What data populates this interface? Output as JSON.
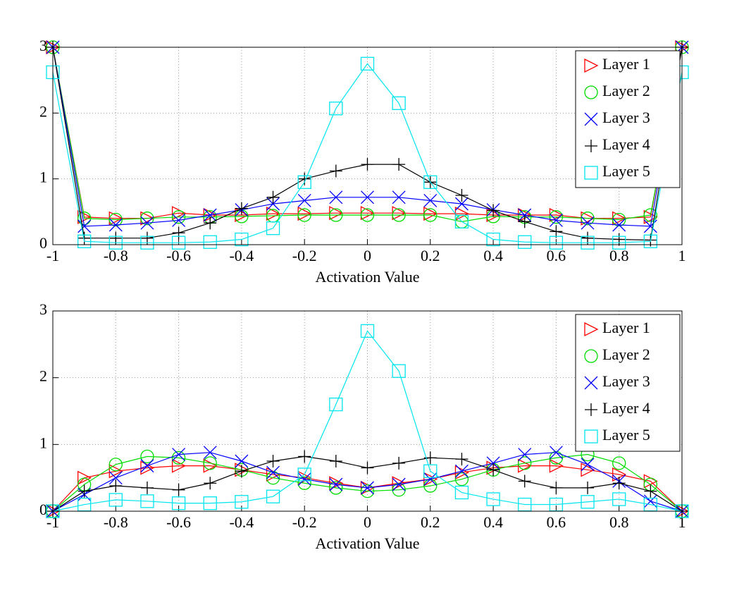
{
  "chart_data": [
    {
      "type": "line",
      "x_label": "Activation Value",
      "x": [
        -1,
        -0.9,
        -0.8,
        -0.7,
        -0.6,
        -0.5,
        -0.4,
        -0.3,
        -0.2,
        -0.1,
        0,
        0.1,
        0.2,
        0.3,
        0.4,
        0.5,
        0.6,
        0.7,
        0.8,
        0.9,
        1
      ],
      "xlim": [
        -1,
        1
      ],
      "xticks": [
        -1,
        -0.8,
        -0.6,
        -0.4,
        -0.2,
        0,
        0.2,
        0.4,
        0.6,
        0.8,
        1
      ],
      "ylim": [
        0,
        3
      ],
      "yticks": [
        0,
        1,
        2,
        3
      ],
      "grid": true,
      "legend": "upper right",
      "series": [
        {
          "name": "Layer 1",
          "color": "#ff0000",
          "marker": "triangle-right",
          "values": [
            3,
            0.42,
            0.4,
            0.4,
            0.48,
            0.45,
            0.45,
            0.47,
            0.47,
            0.48,
            0.48,
            0.48,
            0.47,
            0.47,
            0.45,
            0.45,
            0.45,
            0.4,
            0.4,
            0.42,
            3
          ]
        },
        {
          "name": "Layer 2",
          "color": "#00dd00",
          "marker": "circle",
          "values": [
            3,
            0.4,
            0.38,
            0.4,
            0.42,
            0.42,
            0.43,
            0.44,
            0.45,
            0.45,
            0.45,
            0.45,
            0.45,
            0.35,
            0.43,
            0.42,
            0.42,
            0.4,
            0.38,
            0.45,
            3
          ]
        },
        {
          "name": "Layer 3",
          "color": "#0000ff",
          "marker": "x",
          "values": [
            3,
            0.28,
            0.3,
            0.33,
            0.37,
            0.45,
            0.53,
            0.62,
            0.67,
            0.72,
            0.72,
            0.72,
            0.67,
            0.62,
            0.53,
            0.45,
            0.37,
            0.33,
            0.3,
            0.28,
            3
          ]
        },
        {
          "name": "Layer 4",
          "color": "#000000",
          "marker": "plus",
          "values": [
            3,
            0.1,
            0.1,
            0.1,
            0.18,
            0.33,
            0.55,
            0.72,
            1.0,
            1.12,
            1.22,
            1.22,
            0.95,
            0.75,
            0.52,
            0.35,
            0.2,
            0.1,
            0.08,
            0.07,
            3
          ]
        },
        {
          "name": "Layer 5",
          "color": "#00e5ee",
          "marker": "square",
          "values": [
            2.62,
            0.05,
            0.03,
            0.03,
            0.03,
            0.04,
            0.08,
            0.25,
            0.95,
            2.07,
            2.75,
            2.15,
            0.95,
            0.35,
            0.08,
            0.04,
            0.03,
            0.03,
            0.03,
            0.05,
            2.62
          ]
        }
      ]
    },
    {
      "type": "line",
      "x_label": "Activation Value",
      "x": [
        -1,
        -0.9,
        -0.8,
        -0.7,
        -0.6,
        -0.5,
        -0.4,
        -0.3,
        -0.2,
        -0.1,
        0,
        0.1,
        0.2,
        0.3,
        0.4,
        0.5,
        0.6,
        0.7,
        0.8,
        0.9,
        1
      ],
      "xlim": [
        -1,
        1
      ],
      "xticks": [
        -1,
        -0.8,
        -0.6,
        -0.4,
        -0.2,
        0,
        0.2,
        0.4,
        0.6,
        0.8,
        1
      ],
      "ylim": [
        0,
        3
      ],
      "yticks": [
        0,
        1,
        2,
        3
      ],
      "grid": true,
      "legend": "upper right",
      "series": [
        {
          "name": "Layer 1",
          "color": "#ff0000",
          "marker": "triangle-right",
          "values": [
            0,
            0.5,
            0.6,
            0.65,
            0.68,
            0.68,
            0.62,
            0.55,
            0.5,
            0.42,
            0.35,
            0.42,
            0.48,
            0.58,
            0.65,
            0.68,
            0.68,
            0.62,
            0.55,
            0.45,
            0
          ]
        },
        {
          "name": "Layer 2",
          "color": "#00dd00",
          "marker": "circle",
          "values": [
            0,
            0.4,
            0.7,
            0.82,
            0.8,
            0.72,
            0.62,
            0.5,
            0.42,
            0.35,
            0.3,
            0.32,
            0.38,
            0.48,
            0.62,
            0.72,
            0.8,
            0.85,
            0.72,
            0.4,
            0
          ]
        },
        {
          "name": "Layer 3",
          "color": "#0000ff",
          "marker": "x",
          "values": [
            0,
            0.25,
            0.5,
            0.68,
            0.85,
            0.88,
            0.75,
            0.58,
            0.48,
            0.4,
            0.35,
            0.4,
            0.48,
            0.6,
            0.72,
            0.85,
            0.88,
            0.7,
            0.45,
            0.15,
            0
          ]
        },
        {
          "name": "Layer 4",
          "color": "#000000",
          "marker": "plus",
          "values": [
            0,
            0.3,
            0.38,
            0.35,
            0.32,
            0.42,
            0.6,
            0.75,
            0.82,
            0.75,
            0.65,
            0.72,
            0.8,
            0.78,
            0.62,
            0.45,
            0.35,
            0.35,
            0.42,
            0.3,
            0
          ]
        },
        {
          "name": "Layer 5",
          "color": "#00e5ee",
          "marker": "square",
          "values": [
            0,
            0.1,
            0.17,
            0.15,
            0.12,
            0.12,
            0.14,
            0.22,
            0.55,
            1.6,
            2.7,
            2.1,
            0.6,
            0.28,
            0.18,
            0.1,
            0.1,
            0.14,
            0.18,
            0.1,
            0
          ]
        }
      ]
    }
  ]
}
